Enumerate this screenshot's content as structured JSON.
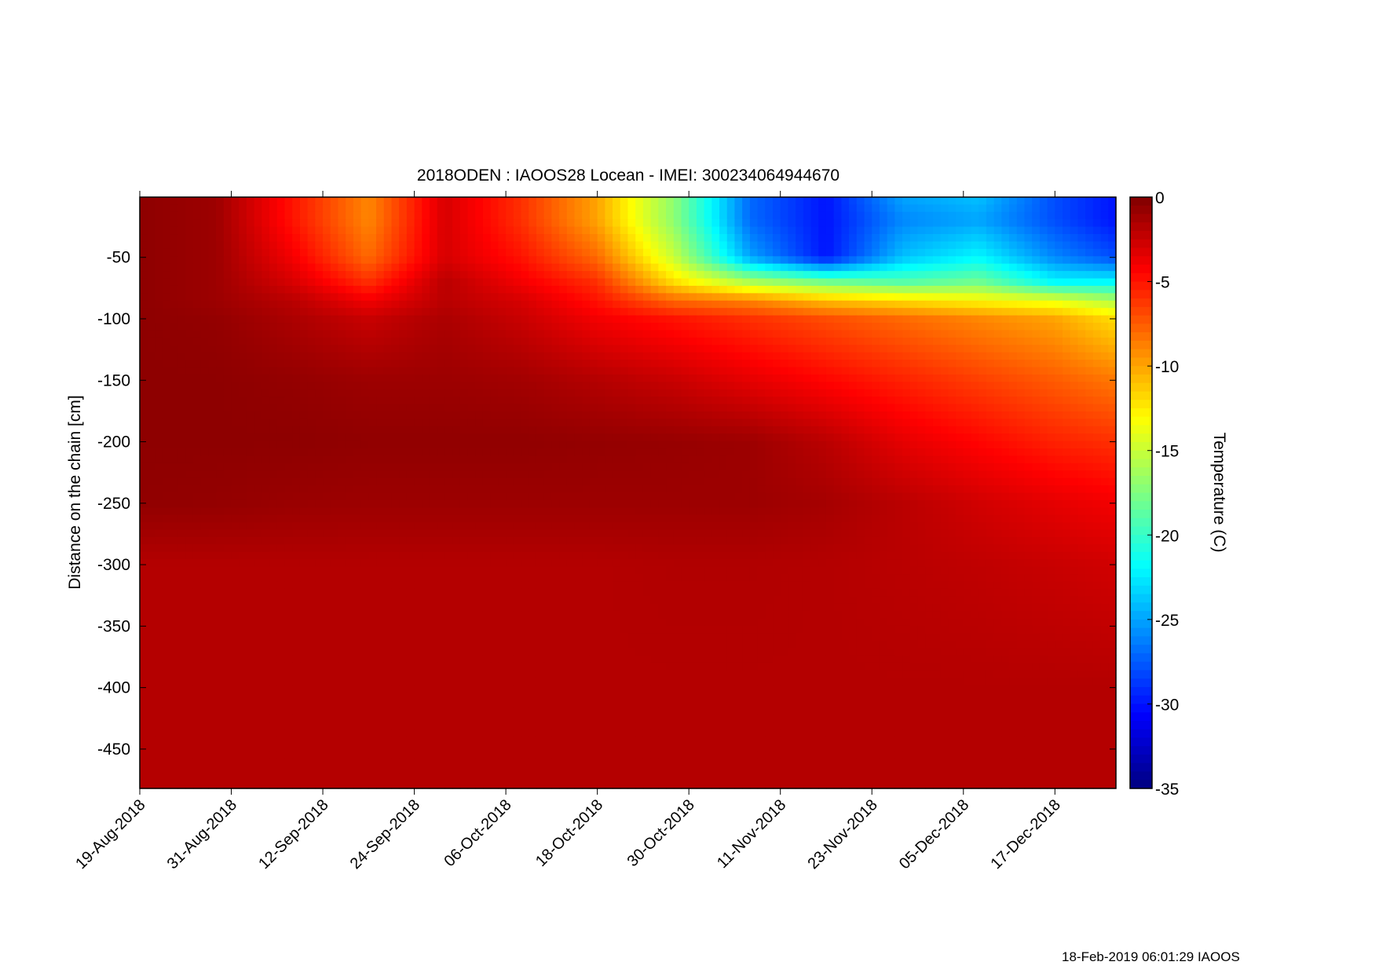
{
  "chart_data": {
    "type": "heatmap",
    "title": "2018ODEN : IAOOS28  Locean - IMEI: 300234064944670",
    "xlabel": "",
    "ylabel": "Distance on the chain [cm]",
    "colorbar_label": "Temperature (C)",
    "footer": "18-Feb-2019 06:01:29 IAOOS",
    "x_start_date": "19-Aug-2018",
    "x_unit": "days since 19-Aug-2018",
    "xlim": [
      0,
      128
    ],
    "x_ticks": [
      0,
      12,
      24,
      36,
      48,
      60,
      72,
      84,
      96,
      108,
      120
    ],
    "x_tick_labels": [
      "19-Aug-2018",
      "31-Aug-2018",
      "12-Sep-2018",
      "24-Sep-2018",
      "06-Oct-2018",
      "18-Oct-2018",
      "30-Oct-2018",
      "11-Nov-2018",
      "23-Nov-2018",
      "05-Dec-2018",
      "17-Dec-2018"
    ],
    "ylim": [
      -482,
      -1
    ],
    "y_ticks": [
      -50,
      -100,
      -150,
      -200,
      -250,
      -300,
      -350,
      -400,
      -450
    ],
    "y_tick_labels": [
      "-50",
      "-100",
      "-150",
      "-200",
      "-250",
      "-300",
      "-350",
      "-400",
      "-450"
    ],
    "clim": [
      -35,
      0
    ],
    "colorbar_ticks": [
      0,
      -5,
      -10,
      -15,
      -20,
      -25,
      -30,
      -35
    ],
    "colorbar_tick_labels": [
      "0",
      "-5",
      "-10",
      "-15",
      "-20",
      "-25",
      "-30",
      "-35"
    ],
    "colormap": "jet",
    "grid_x_days": [
      0,
      10,
      20,
      30,
      40,
      50,
      60,
      70,
      80,
      90,
      100,
      110,
      120,
      128
    ],
    "grid_y_depths": [
      -1,
      -20,
      -50,
      -70,
      -85,
      -100,
      -150,
      -200,
      -250,
      -300,
      -400,
      -482
    ],
    "values": [
      [
        -0.5,
        -1,
        -5,
        -9,
        -3,
        -6,
        -10,
        -17,
        -27,
        -30,
        -25,
        -24,
        -28,
        -30
      ],
      [
        -0.5,
        -1,
        -5,
        -9,
        -3,
        -6,
        -10,
        -17,
        -27,
        -30,
        -26,
        -25,
        -28,
        -30
      ],
      [
        -0.5,
        -1,
        -4,
        -8,
        -3,
        -5,
        -8,
        -15,
        -25,
        -30,
        -24,
        -22,
        -26,
        -28
      ],
      [
        -0.5,
        -1,
        -3,
        -6,
        -2,
        -4,
        -6,
        -12,
        -16,
        -18,
        -19,
        -18,
        -22,
        -22
      ],
      [
        -0.5,
        -1,
        -2,
        -4,
        -2,
        -3,
        -5,
        -8,
        -9,
        -11,
        -12,
        -13,
        -14,
        -16
      ],
      [
        -0.5,
        -0.7,
        -1.5,
        -2.5,
        -1.5,
        -2.5,
        -4,
        -5,
        -6,
        -7,
        -8,
        -9,
        -10,
        -12
      ],
      [
        -0.5,
        -0.5,
        -0.7,
        -1,
        -1,
        -1.2,
        -1.8,
        -2.5,
        -3.5,
        -4.5,
        -5.5,
        -6.5,
        -7.5,
        -8.5
      ],
      [
        -0.5,
        -0.5,
        -0.5,
        -0.6,
        -0.6,
        -0.6,
        -0.7,
        -0.8,
        -1,
        -2,
        -3.5,
        -4.5,
        -5.5,
        -6
      ],
      [
        -0.6,
        -0.7,
        -0.9,
        -1,
        -1,
        -1,
        -1,
        -1,
        -1,
        -1.3,
        -2,
        -2.8,
        -3.5,
        -4
      ],
      [
        -1.8,
        -1.8,
        -1.8,
        -1.8,
        -1.8,
        -1.8,
        -1.8,
        -1.7,
        -1.7,
        -1.8,
        -2,
        -2.2,
        -2.5,
        -2.8
      ],
      [
        -1.8,
        -1.8,
        -1.8,
        -1.8,
        -1.8,
        -1.8,
        -1.8,
        -1.8,
        -1.8,
        -1.8,
        -1.8,
        -1.8,
        -1.8,
        -1.8
      ],
      [
        -1.8,
        -1.8,
        -1.8,
        -1.8,
        -1.8,
        -1.8,
        -1.8,
        -1.8,
        -1.8,
        -1.8,
        -1.8,
        -1.8,
        -1.8,
        -1.8
      ]
    ]
  }
}
